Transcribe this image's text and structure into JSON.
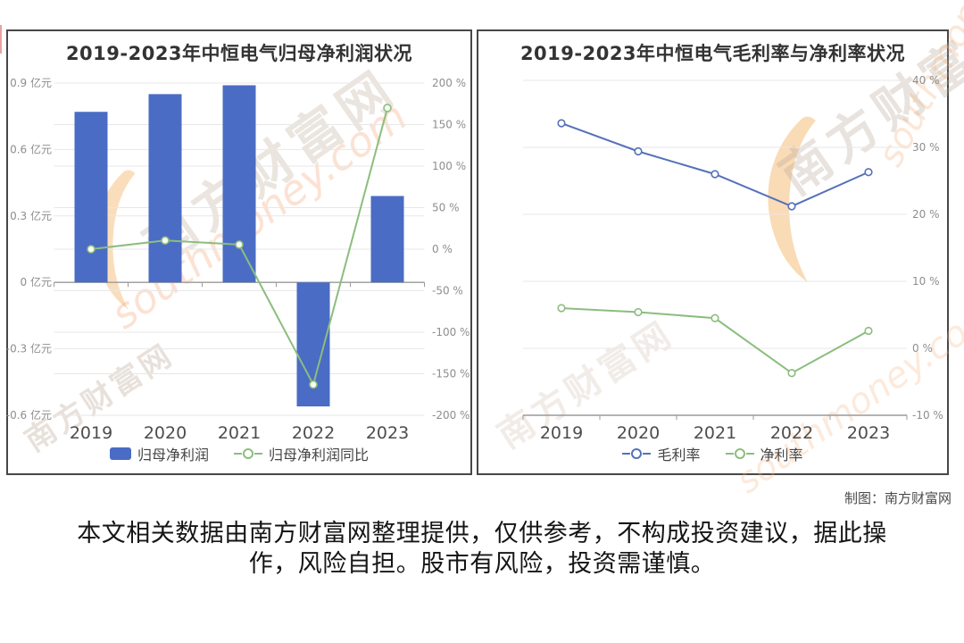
{
  "page": {
    "credit": "制图：南方财富网",
    "disclaimer": {
      "line1": "本文相关数据由南方财富网整理提供，仅供参考，不构成投资建议，据此操",
      "line2": "作，风险自担。股市有风险，投资需谨慎。"
    }
  },
  "watermark": {
    "brand": "南方财富网",
    "domain": "southmoney.com",
    "accent_color": "#f6c487"
  },
  "chart_data": [
    {
      "type": "bar",
      "subtype": "bar+line, dual axis",
      "title": "2019-2023年中恒电气归母净利润状况",
      "categories": [
        "2019",
        "2020",
        "2021",
        "2022",
        "2023"
      ],
      "series": [
        {
          "name": "归母净利润",
          "type": "bar",
          "axis": "left",
          "unit": "亿元",
          "color": "#4a6cc4",
          "values": [
            0.77,
            0.85,
            0.89,
            -0.56,
            0.39
          ]
        },
        {
          "name": "归母净利润同比",
          "type": "line",
          "axis": "right",
          "unit": "%",
          "color": "#8cbd7e",
          "values": [
            0,
            10.5,
            5.5,
            -163,
            170
          ]
        }
      ],
      "left_axis": {
        "min": -0.6,
        "max": 0.9,
        "ticks": [
          0.9,
          0.6,
          0.3,
          0,
          -0.3,
          -0.6
        ],
        "labels": [
          "0.9 亿元",
          "0.6 亿元",
          "0.3 亿元",
          "0 亿元",
          "-0.3 亿元",
          "-0.6 亿元"
        ]
      },
      "right_axis": {
        "min": -200,
        "max": 200,
        "ticks": [
          200,
          150,
          100,
          50,
          0,
          -50,
          -100,
          -150,
          -200
        ],
        "labels": [
          "200 %",
          "150 %",
          "100 %",
          "50 %",
          "0 %",
          "-50 %",
          "-100 %",
          "-150 %",
          "-200 %"
        ]
      },
      "grid": true,
      "legend_position": "bottom"
    },
    {
      "type": "line",
      "title": "2019-2023年中恒电气毛利率与净利率状况",
      "categories": [
        "2019",
        "2020",
        "2021",
        "2022",
        "2023"
      ],
      "series": [
        {
          "name": "毛利率",
          "type": "line",
          "axis": "right",
          "unit": "%",
          "color": "#5571b9",
          "values": [
            33.6,
            29.4,
            26.0,
            21.2,
            26.3
          ]
        },
        {
          "name": "净利率",
          "type": "line",
          "axis": "right",
          "unit": "%",
          "color": "#8cbd7e",
          "values": [
            6.0,
            5.4,
            4.5,
            -3.7,
            2.6
          ]
        }
      ],
      "right_axis": {
        "min": -10,
        "max": 40,
        "ticks": [
          40,
          30,
          20,
          10,
          0,
          -10
        ],
        "labels": [
          "40 %",
          "30 %",
          "20 %",
          "10 %",
          "0 %",
          "-10 %"
        ]
      },
      "grid": true,
      "legend_position": "bottom"
    }
  ]
}
